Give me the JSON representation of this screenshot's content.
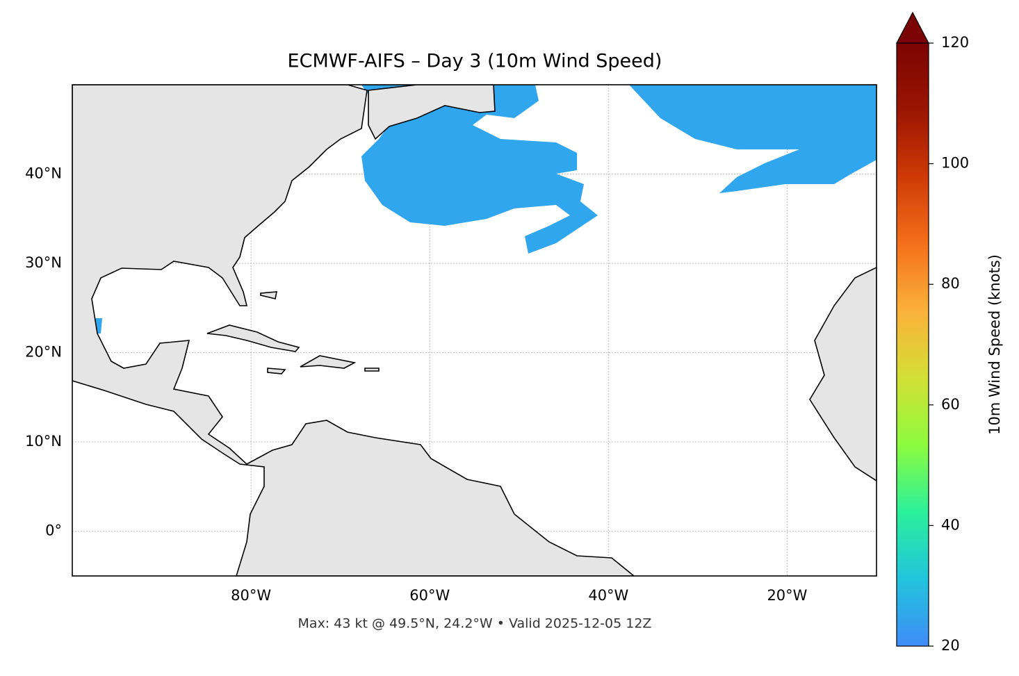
{
  "map": {
    "title": "ECMWF-AIFS – Day 3 (10m Wind Speed)",
    "footer": "Max: 43 kt @ 49.5°N, 24.2°W • Valid 2025-12-05 12Z",
    "xlim": [
      -100,
      -10
    ],
    "ylim": [
      -5,
      50
    ],
    "grid": true,
    "xticks": [
      {
        "value": -80,
        "label": "80°W"
      },
      {
        "value": -60,
        "label": "60°W"
      },
      {
        "value": -40,
        "label": "40°W"
      },
      {
        "value": -20,
        "label": "20°W"
      }
    ],
    "yticks": [
      {
        "value": 40,
        "label": "40°N"
      },
      {
        "value": 30,
        "label": "30°N"
      },
      {
        "value": 20,
        "label": "20°N"
      },
      {
        "value": 10,
        "label": "10°N"
      },
      {
        "value": 0,
        "label": "0°"
      }
    ],
    "colorbar": {
      "label": "10m Wind Speed (knots)",
      "lim": [
        20,
        120
      ],
      "ticks": [
        20,
        40,
        60,
        80,
        100,
        120
      ],
      "colors": [
        "#3f8cf8",
        "#22c4dd",
        "#2af09a",
        "#8cfb3e",
        "#d3e035",
        "#fbb13a",
        "#f4701b",
        "#cf3a06",
        "#9b1502",
        "#7a0403"
      ]
    }
  }
}
